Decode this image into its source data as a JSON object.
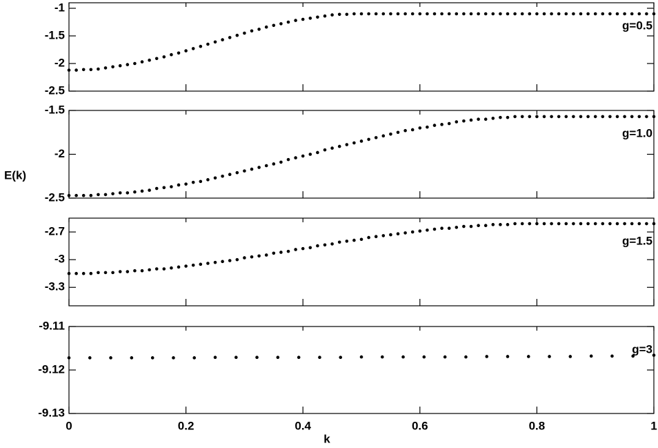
{
  "chart_data": [
    {
      "type": "scatter",
      "annotation": "g=0.5",
      "color": "#000000",
      "xlim": [
        0,
        1
      ],
      "xticks": [
        0,
        0.2,
        0.4,
        0.6,
        0.8,
        1
      ],
      "ylim": [
        -2.5,
        -0.9
      ],
      "yticks": [
        -2.5,
        -2,
        -1.5,
        -1
      ],
      "x": [
        0,
        0.0125,
        0.025,
        0.0375,
        0.05,
        0.0625,
        0.075,
        0.0875,
        0.1,
        0.1125,
        0.125,
        0.1375,
        0.15,
        0.1625,
        0.175,
        0.1875,
        0.2,
        0.2125,
        0.225,
        0.2375,
        0.25,
        0.2625,
        0.275,
        0.2875,
        0.3,
        0.3125,
        0.325,
        0.3375,
        0.35,
        0.3625,
        0.375,
        0.3875,
        0.4,
        0.4125,
        0.425,
        0.4375,
        0.45,
        0.4625,
        0.475,
        0.4875,
        0.5,
        0.5125,
        0.525,
        0.5375,
        0.55,
        0.5625,
        0.575,
        0.5875,
        0.6,
        0.6125,
        0.625,
        0.6375,
        0.65,
        0.6625,
        0.675,
        0.6875,
        0.7,
        0.7125,
        0.725,
        0.7375,
        0.75,
        0.7625,
        0.775,
        0.7875,
        0.8,
        0.8125,
        0.825,
        0.8375,
        0.85,
        0.8625,
        0.875,
        0.8875,
        0.9,
        0.9125,
        0.925,
        0.9375,
        0.95,
        0.9625,
        0.975,
        0.9875,
        1
      ],
      "values": [
        -2.12,
        -2.12,
        -2.11,
        -2.11,
        -2.1,
        -2.08,
        -2.06,
        -2.04,
        -2.02,
        -2.0,
        -1.97,
        -1.94,
        -1.91,
        -1.88,
        -1.84,
        -1.81,
        -1.77,
        -1.73,
        -1.69,
        -1.65,
        -1.61,
        -1.57,
        -1.53,
        -1.49,
        -1.45,
        -1.41,
        -1.38,
        -1.34,
        -1.31,
        -1.28,
        -1.25,
        -1.22,
        -1.2,
        -1.18,
        -1.16,
        -1.14,
        -1.12,
        -1.11,
        -1.11,
        -1.1,
        -1.1,
        -1.1,
        -1.1,
        -1.1,
        -1.1,
        -1.1,
        -1.1,
        -1.1,
        -1.1,
        -1.1,
        -1.1,
        -1.1,
        -1.1,
        -1.1,
        -1.1,
        -1.1,
        -1.1,
        -1.1,
        -1.1,
        -1.1,
        -1.1,
        -1.1,
        -1.1,
        -1.1,
        -1.1,
        -1.1,
        -1.1,
        -1.1,
        -1.1,
        -1.1,
        -1.1,
        -1.1,
        -1.1,
        -1.1,
        -1.1,
        -1.1,
        -1.1,
        -1.1,
        -1.1,
        -1.1,
        -1.1
      ]
    },
    {
      "type": "scatter",
      "annotation": "g=1.0",
      "ylabel": "E(k)",
      "color": "#000000",
      "xlim": [
        0,
        1
      ],
      "xticks": [
        0,
        0.2,
        0.4,
        0.6,
        0.8,
        1
      ],
      "ylim": [
        -2.5,
        -1.5
      ],
      "yticks": [
        -2.5,
        -2,
        -1.5
      ],
      "x": [
        0,
        0.0125,
        0.025,
        0.0375,
        0.05,
        0.0625,
        0.075,
        0.0875,
        0.1,
        0.1125,
        0.125,
        0.1375,
        0.15,
        0.1625,
        0.175,
        0.1875,
        0.2,
        0.2125,
        0.225,
        0.2375,
        0.25,
        0.2625,
        0.275,
        0.2875,
        0.3,
        0.3125,
        0.325,
        0.3375,
        0.35,
        0.3625,
        0.375,
        0.3875,
        0.4,
        0.4125,
        0.425,
        0.4375,
        0.45,
        0.4625,
        0.475,
        0.4875,
        0.5,
        0.5125,
        0.525,
        0.5375,
        0.55,
        0.5625,
        0.575,
        0.5875,
        0.6,
        0.6125,
        0.625,
        0.6375,
        0.65,
        0.6625,
        0.675,
        0.6875,
        0.7,
        0.7125,
        0.725,
        0.7375,
        0.75,
        0.7625,
        0.775,
        0.7875,
        0.8,
        0.8125,
        0.825,
        0.8375,
        0.85,
        0.8625,
        0.875,
        0.8875,
        0.9,
        0.9125,
        0.925,
        0.9375,
        0.95,
        0.9625,
        0.975,
        0.9875,
        1
      ],
      "values": [
        -2.47,
        -2.47,
        -2.47,
        -2.47,
        -2.46,
        -2.46,
        -2.45,
        -2.44,
        -2.44,
        -2.43,
        -2.42,
        -2.41,
        -2.39,
        -2.38,
        -2.37,
        -2.35,
        -2.34,
        -2.32,
        -2.31,
        -2.29,
        -2.27,
        -2.25,
        -2.23,
        -2.21,
        -2.19,
        -2.17,
        -2.15,
        -2.13,
        -2.11,
        -2.09,
        -2.06,
        -2.04,
        -2.02,
        -2.0,
        -1.98,
        -1.95,
        -1.93,
        -1.91,
        -1.89,
        -1.87,
        -1.85,
        -1.83,
        -1.81,
        -1.79,
        -1.77,
        -1.75,
        -1.73,
        -1.72,
        -1.7,
        -1.69,
        -1.67,
        -1.66,
        -1.65,
        -1.63,
        -1.62,
        -1.61,
        -1.6,
        -1.6,
        -1.59,
        -1.58,
        -1.58,
        -1.57,
        -1.57,
        -1.57,
        -1.57,
        -1.57,
        -1.57,
        -1.57,
        -1.57,
        -1.57,
        -1.57,
        -1.57,
        -1.57,
        -1.57,
        -1.57,
        -1.57,
        -1.57,
        -1.57,
        -1.57,
        -1.57,
        -1.57
      ]
    },
    {
      "type": "scatter",
      "annotation": "g=1.5",
      "color": "#000000",
      "xlim": [
        0,
        1
      ],
      "xticks": [
        0,
        0.2,
        0.4,
        0.6,
        0.8,
        1
      ],
      "ylim": [
        -3.5,
        -2.55
      ],
      "yticks": [
        -3.3,
        -3,
        -2.7
      ],
      "x": [
        0,
        0.0125,
        0.025,
        0.0375,
        0.05,
        0.0625,
        0.075,
        0.0875,
        0.1,
        0.1125,
        0.125,
        0.1375,
        0.15,
        0.1625,
        0.175,
        0.1875,
        0.2,
        0.2125,
        0.225,
        0.2375,
        0.25,
        0.2625,
        0.275,
        0.2875,
        0.3,
        0.3125,
        0.325,
        0.3375,
        0.35,
        0.3625,
        0.375,
        0.3875,
        0.4,
        0.4125,
        0.425,
        0.4375,
        0.45,
        0.4625,
        0.475,
        0.4875,
        0.5,
        0.5125,
        0.525,
        0.5375,
        0.55,
        0.5625,
        0.575,
        0.5875,
        0.6,
        0.6125,
        0.625,
        0.6375,
        0.65,
        0.6625,
        0.675,
        0.6875,
        0.7,
        0.7125,
        0.725,
        0.7375,
        0.75,
        0.7625,
        0.775,
        0.7875,
        0.8,
        0.8125,
        0.825,
        0.8375,
        0.85,
        0.8625,
        0.875,
        0.8875,
        0.9,
        0.9125,
        0.925,
        0.9375,
        0.95,
        0.9625,
        0.975,
        0.9875,
        1
      ],
      "values": [
        -3.15,
        -3.15,
        -3.15,
        -3.15,
        -3.14,
        -3.14,
        -3.14,
        -3.13,
        -3.13,
        -3.12,
        -3.12,
        -3.11,
        -3.1,
        -3.1,
        -3.09,
        -3.08,
        -3.07,
        -3.06,
        -3.05,
        -3.04,
        -3.03,
        -3.02,
        -3.01,
        -3.0,
        -2.98,
        -2.97,
        -2.96,
        -2.95,
        -2.93,
        -2.92,
        -2.91,
        -2.89,
        -2.88,
        -2.87,
        -2.85,
        -2.84,
        -2.83,
        -2.81,
        -2.8,
        -2.79,
        -2.78,
        -2.76,
        -2.75,
        -2.74,
        -2.73,
        -2.72,
        -2.71,
        -2.7,
        -2.69,
        -2.68,
        -2.67,
        -2.66,
        -2.66,
        -2.65,
        -2.64,
        -2.64,
        -2.63,
        -2.63,
        -2.62,
        -2.62,
        -2.62,
        -2.61,
        -2.61,
        -2.61,
        -2.61,
        -2.61,
        -2.61,
        -2.61,
        -2.61,
        -2.61,
        -2.61,
        -2.61,
        -2.61,
        -2.61,
        -2.61,
        -2.61,
        -2.61,
        -2.61,
        -2.61,
        -2.61,
        -2.61
      ]
    },
    {
      "type": "scatter",
      "annotation": "g=3",
      "xlabel": "k",
      "color": "#000000",
      "xlim": [
        0,
        1
      ],
      "xticks": [
        0,
        0.2,
        0.4,
        0.6,
        0.8,
        1
      ],
      "ylim": [
        -9.13,
        -9.11
      ],
      "yticks": [
        -9.13,
        -9.12,
        -9.11
      ],
      "x": [
        0,
        0.0357,
        0.0714,
        0.1071,
        0.1429,
        0.1786,
        0.2143,
        0.25,
        0.2857,
        0.3214,
        0.3571,
        0.3929,
        0.4286,
        0.4643,
        0.5,
        0.5357,
        0.5714,
        0.6071,
        0.6429,
        0.6786,
        0.7143,
        0.75,
        0.7857,
        0.8214,
        0.8571,
        0.8929,
        0.9286,
        0.9643,
        1
      ],
      "values": [
        -9.1172,
        -9.1172,
        -9.1172,
        -9.1172,
        -9.1172,
        -9.1172,
        -9.1172,
        -9.1171,
        -9.1171,
        -9.1171,
        -9.1171,
        -9.1171,
        -9.1171,
        -9.1171,
        -9.117,
        -9.117,
        -9.117,
        -9.117,
        -9.117,
        -9.117,
        -9.1169,
        -9.1169,
        -9.1169,
        -9.1169,
        -9.1169,
        -9.1168,
        -9.1168,
        -9.1168,
        -9.1166
      ]
    }
  ]
}
